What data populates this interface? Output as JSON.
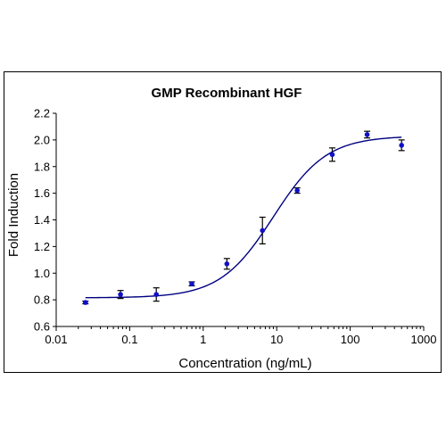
{
  "chart_data": {
    "type": "scatter",
    "title": "GMP Recombinant HGF",
    "xlabel": "Concentration (ng/mL)",
    "ylabel": "Fold Induction",
    "xscale": "log",
    "xlim": [
      0.01,
      1000
    ],
    "ylim": [
      0.6,
      2.2
    ],
    "x_ticks": [
      0.01,
      0.1,
      1,
      10,
      100,
      1000
    ],
    "x_tick_labels": [
      "0.01",
      "0.1",
      "1",
      "10",
      "100",
      "1000"
    ],
    "y_ticks": [
      0.6,
      0.8,
      1.0,
      1.2,
      1.4,
      1.6,
      1.8,
      2.0,
      2.2
    ],
    "y_tick_labels": [
      "0.6",
      "0.8",
      "1.0",
      "1.2",
      "1.4",
      "1.6",
      "1.8",
      "2.0",
      "2.2"
    ],
    "grid": false,
    "legend": "none",
    "series": [
      {
        "x": [
          0.025,
          0.075,
          0.23,
          0.7,
          2.1,
          6.4,
          19,
          57,
          170,
          500
        ],
        "y": [
          0.78,
          0.84,
          0.84,
          0.92,
          1.07,
          1.32,
          1.62,
          1.89,
          2.04,
          1.96
        ],
        "error": [
          0.01,
          0.03,
          0.05,
          0.015,
          0.04,
          0.1,
          0.02,
          0.05,
          0.025,
          0.04
        ]
      }
    ],
    "fit_curve": {
      "model": "4PL",
      "bottom": 0.815,
      "top": 2.03,
      "ec50": 9,
      "hill": 1.2
    },
    "colors": {
      "points": "#1010c8",
      "curve": "#000080",
      "error_bars": "#000000",
      "axes": "#000000"
    }
  }
}
